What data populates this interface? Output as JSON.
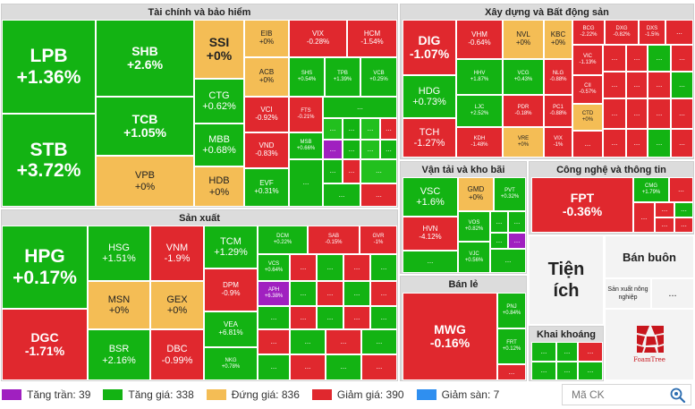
{
  "sections": {
    "finance": "Tài chính và bảo hiểm",
    "realestate": "Xây dựng và Bất động sản",
    "transport": "Vận tải và kho bãi",
    "tech": "Công nghệ và thông tin",
    "manufacturing": "Sản xuất",
    "retail": "Bán lẻ",
    "mining": "Khai khoáng",
    "utilities": "Tiện ích",
    "wholesale": "Bán buôn",
    "agri": "Sản xuất nông nghiệp"
  },
  "finance": [
    {
      "s": "LPB",
      "p": "+1.36%"
    },
    {
      "s": "STB",
      "p": "+3.72%"
    },
    {
      "s": "SHB",
      "p": "+2.6%"
    },
    {
      "s": "TCB",
      "p": "+1.05%"
    },
    {
      "s": "VPB",
      "p": "+0%"
    },
    {
      "s": "SSI",
      "p": "+0%"
    },
    {
      "s": "CTG",
      "p": "+0.62%"
    },
    {
      "s": "MBB",
      "p": "+0.68%"
    },
    {
      "s": "HDB",
      "p": "+0%"
    },
    {
      "s": "EIB",
      "p": "+0%"
    },
    {
      "s": "ACB",
      "p": "+0%"
    },
    {
      "s": "VCI",
      "p": "-0.92%"
    },
    {
      "s": "VND",
      "p": "-0.83%"
    },
    {
      "s": "EVF",
      "p": "+0.31%"
    },
    {
      "s": "VIX",
      "p": "-0.28%"
    },
    {
      "s": "HCM",
      "p": "-1.54%"
    },
    {
      "s": "SHS",
      "p": "+0.54%"
    },
    {
      "s": "TPB",
      "p": "+1.39%"
    },
    {
      "s": "VCB",
      "p": "+0.25%"
    },
    {
      "s": "FTS",
      "p": "-0.21%"
    },
    {
      "s": "MSB",
      "p": "+0.66%"
    }
  ],
  "realestate": [
    {
      "s": "DIG",
      "p": "-1.07%"
    },
    {
      "s": "HDG",
      "p": "+0.73%"
    },
    {
      "s": "TCH",
      "p": "-1.27%"
    },
    {
      "s": "VHM",
      "p": "-0.64%"
    },
    {
      "s": "NVL",
      "p": "+0%"
    },
    {
      "s": "KBC",
      "p": "+0%"
    },
    {
      "s": "HHV",
      "p": "+1.87%"
    },
    {
      "s": "VCG",
      "p": "+0.43%"
    },
    {
      "s": "NLG",
      "p": "-0.88%"
    },
    {
      "s": "LJC",
      "p": "+2.52%"
    },
    {
      "s": "PDR",
      "p": "-0.18%"
    },
    {
      "s": "PC1",
      "p": "-0.88%"
    },
    {
      "s": "KDH",
      "p": "-1.48%"
    },
    {
      "s": "VRE",
      "p": "+0%"
    },
    {
      "s": "VIX",
      "p": "-1%"
    },
    {
      "s": "DXG",
      "p": "-0.82%"
    },
    {
      "s": "BCG",
      "p": "-2.22%"
    },
    {
      "s": "DXS",
      "p": "-1.5%"
    },
    {
      "s": "VIC",
      "p": "-1.13%"
    },
    {
      "s": "CII",
      "p": "-0.57%"
    },
    {
      "s": "CTD",
      "p": "+0%"
    }
  ],
  "transport": [
    {
      "s": "VSC",
      "p": "+1.6%"
    },
    {
      "s": "HVN",
      "p": "-4.12%"
    },
    {
      "s": "GMD",
      "p": "+0%"
    },
    {
      "s": "PVT",
      "p": "+0.32%"
    },
    {
      "s": "VOS",
      "p": "+0.82%"
    },
    {
      "s": "VJC",
      "p": "+0.56%"
    }
  ],
  "tech": [
    {
      "s": "FPT",
      "p": "-0.36%"
    },
    {
      "s": "CMG",
      "p": "+1.79%"
    }
  ],
  "manufacturing": [
    {
      "s": "HPG",
      "p": "+0.17%"
    },
    {
      "s": "DGC",
      "p": "-1.71%"
    },
    {
      "s": "HSG",
      "p": "+1.51%"
    },
    {
      "s": "MSN",
      "p": "+0%"
    },
    {
      "s": "BSR",
      "p": "+2.16%"
    },
    {
      "s": "VNM",
      "p": "-1.9%"
    },
    {
      "s": "GEX",
      "p": "+0%"
    },
    {
      "s": "DBC",
      "p": "-0.99%"
    },
    {
      "s": "TCM",
      "p": "+1.29%"
    },
    {
      "s": "DPM",
      "p": "-0.9%"
    },
    {
      "s": "VEA",
      "p": "+6.81%"
    },
    {
      "s": "NKG",
      "p": "+0.78%"
    },
    {
      "s": "DCM",
      "p": "+0.22%"
    },
    {
      "s": "SAB",
      "p": "-0.15%"
    },
    {
      "s": "GVR",
      "p": "-1%"
    },
    {
      "s": "VCS",
      "p": "+0.64%"
    },
    {
      "s": "APH",
      "p": "+6.38%"
    }
  ],
  "retail": [
    {
      "s": "MWG",
      "p": "-0.16%"
    },
    {
      "s": "PNJ",
      "p": "+0.84%"
    },
    {
      "s": "FRT",
      "p": "+0.12%"
    }
  ],
  "more": "...",
  "logo_text": "FoamTree",
  "legend": [
    {
      "label": "Tăng trần: 39",
      "color": "#a020c0"
    },
    {
      "label": "Tăng giá: 338",
      "color": "#13b313"
    },
    {
      "label": "Đứng giá: 836",
      "color": "#f4bd55"
    },
    {
      "label": "Giảm giá: 390",
      "color": "#e0282e"
    },
    {
      "label": "Giảm sàn: 7",
      "color": "#2f8ff0"
    }
  ],
  "search": {
    "placeholder": "Mã CK",
    "icon": "search-settings-icon"
  }
}
